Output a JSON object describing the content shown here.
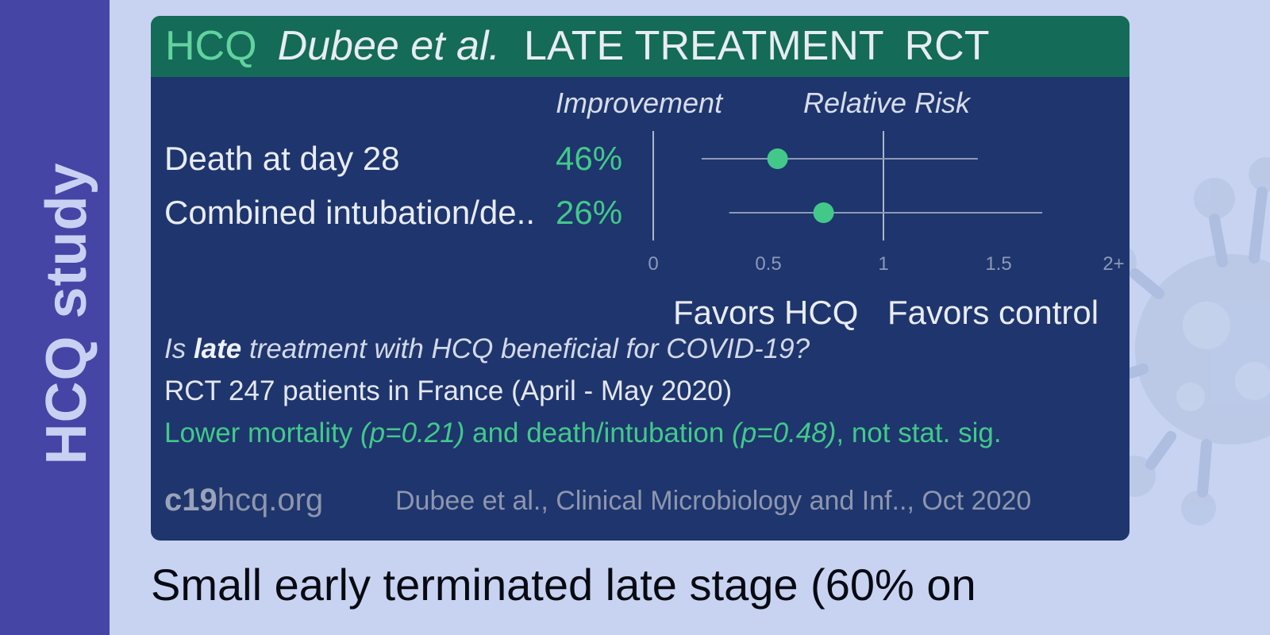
{
  "sidebar": {
    "label": "HCQ study"
  },
  "header": {
    "drug": "HCQ",
    "author": "Dubee et al.",
    "stage": "LATE TREATMENT",
    "study_type": "RCT"
  },
  "columns": {
    "improvement": "Improvement",
    "relative_risk": "Relative Risk"
  },
  "chart_data": {
    "type": "forest",
    "outcomes": [
      {
        "label": "Death at day 28",
        "improvement": "46%",
        "rr": 0.54,
        "ci": [
          0.21,
          1.41
        ]
      },
      {
        "label": "Combined intubation/de..",
        "improvement": "26%",
        "rr": 0.74,
        "ci": [
          0.33,
          1.69
        ]
      }
    ],
    "x_ticks": [
      "0",
      "0.5",
      "1",
      "1.5",
      "2+"
    ],
    "x_tick_values": [
      0,
      0.5,
      1,
      1.5,
      2
    ],
    "xlim": [
      0,
      2
    ],
    "reference_line": 1,
    "favors_left": "Favors HCQ",
    "favors_right": "Favors control",
    "colors": {
      "point": "#42c98a",
      "ci_line": "#8d99b8",
      "axis": "#aeb6c9"
    }
  },
  "summary": {
    "question_prefix": "Is ",
    "question_emphasis": "late",
    "question_suffix": " treatment with HCQ beneficial for COVID-19?",
    "details": "RCT 247 patients in France (April - May 2020)",
    "conclusion_1": "Lower mortality ",
    "p_mortality": "(p=0.21)",
    "conclusion_2": " and death/intubation ",
    "p_intubation": "(p=0.48)",
    "conclusion_3": ", not stat. sig."
  },
  "footer": {
    "site_bold": "c19",
    "site_rest": "hcq.org",
    "citation": "Dubee et al., Clinical Microbiology and Inf.., Oct 2020"
  },
  "bottom_text": {
    "line1": "Small early terminated late stage (60% on"
  }
}
